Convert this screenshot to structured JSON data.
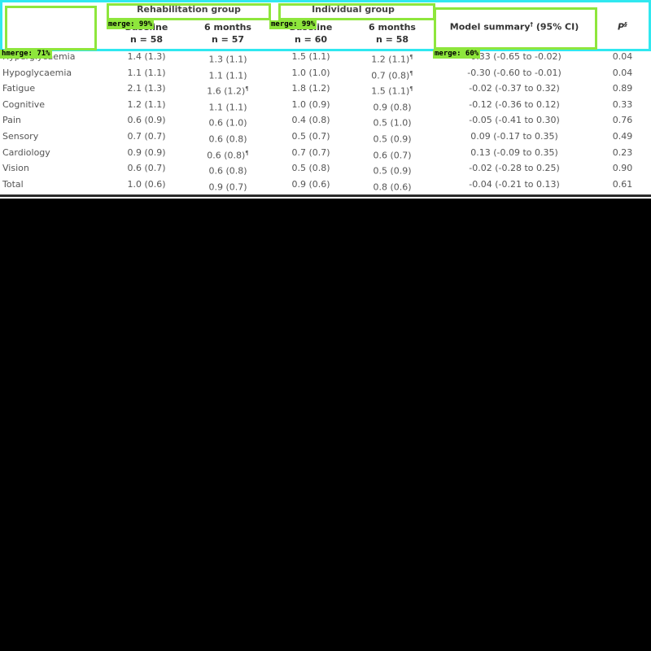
{
  "table": {
    "groups": [
      {
        "label": "Rehabilitation group"
      },
      {
        "label": "Individual group"
      }
    ],
    "subheaders": [
      {
        "line1": "Baseline",
        "line2": "n = 58"
      },
      {
        "line1": "6 months",
        "line2": "n = 57"
      },
      {
        "line1": "Baseline",
        "line2": "n = 60"
      },
      {
        "line1": "6 months",
        "line2": "n = 58"
      }
    ],
    "model_header": "Model summary",
    "model_header_mark": "†",
    "model_header_ci": "(95% CI)",
    "p_header": "P",
    "p_header_mark": "§",
    "rows": [
      {
        "label": "Hyperglycaemia",
        "c1": "1.4 (1.3)",
        "c2": "1.3 (1.1)",
        "c2m": "",
        "c3": "1.5 (1.1)",
        "c4": "1.2 (1.1)",
        "c4m": "¶",
        "model": "-0.33 (-0.65 to -0.02)",
        "p": "0.04"
      },
      {
        "label": "Hypoglycaemia",
        "c1": "1.1 (1.1)",
        "c2": "1.1 (1.1)",
        "c2m": "",
        "c3": "1.0 (1.0)",
        "c4": "0.7 (0.8)",
        "c4m": "¶",
        "model": "-0.30 (-0.60 to -0.01)",
        "p": "0.04"
      },
      {
        "label": "Fatigue",
        "c1": "2.1 (1.3)",
        "c2": "1.6 (1.2)",
        "c2m": "¶",
        "c3": "1.8 (1.2)",
        "c4": "1.5 (1.1)",
        "c4m": "¶",
        "model": "-0.02 (-0.37 to 0.32)",
        "p": "0.89"
      },
      {
        "label": "Cognitive",
        "c1": "1.2 (1.1)",
        "c2": "1.1 (1.1)",
        "c2m": "",
        "c3": "1.0 (0.9)",
        "c4": "0.9 (0.8)",
        "c4m": "",
        "model": "-0.12 (-0.36 to 0.12)",
        "p": "0.33"
      },
      {
        "label": "Pain",
        "c1": "0.6 (0.9)",
        "c2": "0.6 (1.0)",
        "c2m": "",
        "c3": "0.4 (0.8)",
        "c4": "0.5 (1.0)",
        "c4m": "",
        "model": "-0.05 (-0.41 to 0.30)",
        "p": "0.76"
      },
      {
        "label": "Sensory",
        "c1": "0.7 (0.7)",
        "c2": "0.6 (0.8)",
        "c2m": "",
        "c3": "0.5 (0.7)",
        "c4": "0.5 (0.9)",
        "c4m": "",
        "model": "0.09 (-0.17 to 0.35)",
        "p": "0.49"
      },
      {
        "label": "Cardiology",
        "c1": "0.9 (0.9)",
        "c2": "0.6 (0.8)",
        "c2m": "¶",
        "c3": "0.7 (0.7)",
        "c4": "0.6 (0.7)",
        "c4m": "",
        "model": "0.13 (-0.09 to 0.35)",
        "p": "0.23"
      },
      {
        "label": "Vision",
        "c1": "0.6 (0.7)",
        "c2": "0.6 (0.8)",
        "c2m": "",
        "c3": "0.5 (0.8)",
        "c4": "0.5 (0.9)",
        "c4m": "",
        "model": "-0.02 (-0.28 to 0.25)",
        "p": "0.90"
      },
      {
        "label": "Total",
        "c1": "1.0 (0.6)",
        "c2": "0.9 (0.7)",
        "c2m": "",
        "c3": "0.9 (0.6)",
        "c4": "0.8 (0.6)",
        "c4m": "",
        "model": "-0.04 (-0.21 to 0.13)",
        "p": "0.61"
      }
    ]
  },
  "annotations": {
    "colors": {
      "header_box": "#30e8f0",
      "merge_box": "#8ee63c"
    },
    "tags": [
      "merge: 99%",
      "merge: 99%",
      "hmerge: 71%",
      "merge: 60%"
    ]
  }
}
